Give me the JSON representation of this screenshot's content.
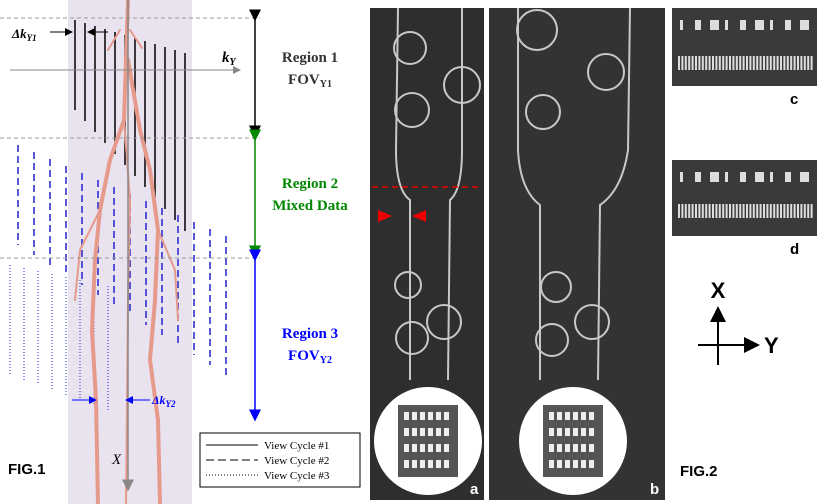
{
  "fig1": {
    "label": "FIG.1",
    "delta_ky1": {
      "main": "Δk",
      "sub": "Y1"
    },
    "ky": {
      "main": "k",
      "sub": "Y"
    },
    "delta_ky2": {
      "main": "Δk",
      "sub": "Y2"
    },
    "x_axis": "X",
    "regions": [
      {
        "name": "Region 1",
        "line2": "FOV",
        "line2_sub": "Y1"
      },
      {
        "name": "Region 2",
        "line2": "Mixed Data"
      },
      {
        "name": "Region 3",
        "line2": "FOV",
        "line2_sub": "Y2"
      }
    ],
    "legend": [
      "View Cycle #1",
      "View Cycle #2",
      "View Cycle #3"
    ]
  },
  "fig2": {
    "label": "FIG.2",
    "panels": [
      "a",
      "b",
      "c",
      "d"
    ],
    "axes": {
      "x": "X",
      "y": "Y"
    }
  }
}
